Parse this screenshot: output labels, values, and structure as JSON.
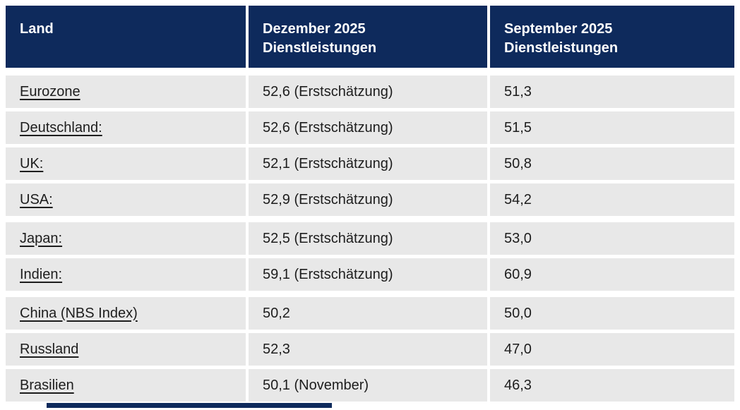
{
  "table": {
    "columns": [
      {
        "label": "Land"
      },
      {
        "label": "Dezember 2025 Dienstleistungen"
      },
      {
        "label": "September 2025 Dienstleistungen"
      }
    ],
    "rows": [
      {
        "land": "Eurozone",
        "dezember": "52,6 (Erstschätzung)",
        "september": "51,3"
      },
      {
        "land": "Deutschland:",
        "dezember": "52,6 (Erstschätzung)",
        "september": "51,5"
      },
      {
        "land": "UK:",
        "dezember": "52,1 (Erstschätzung)",
        "september": "50,8"
      },
      {
        "land": "USA:",
        "dezember": "52,9 (Erstschätzung)",
        "september": "54,2"
      },
      {
        "land": "Japan:",
        "dezember": "52,5 (Erstschätzung)",
        "september": "53,0"
      },
      {
        "land": "Indien:",
        "dezember": "59,1 (Erstschätzung)",
        "september": "60,9"
      },
      {
        "land": "China (NBS Index)",
        "dezember": "50,2",
        "september": "50,0"
      },
      {
        "land": "Russland",
        "dezember": "52,3",
        "september": "47,0"
      },
      {
        "land": "Brasilien",
        "dezember": "50,1 (November)",
        "september": "46,3"
      }
    ]
  },
  "chart_data": {
    "type": "table",
    "title": "",
    "columns": [
      "Land",
      "Dezember 2025 Dienstleistungen",
      "September 2025 Dienstleistungen"
    ],
    "rows": [
      [
        "Eurozone",
        "52,6 (Erstschätzung)",
        "51,3"
      ],
      [
        "Deutschland:",
        "52,6 (Erstschätzung)",
        "51,5"
      ],
      [
        "UK:",
        "52,1 (Erstschätzung)",
        "50,8"
      ],
      [
        "USA:",
        "52,9 (Erstschätzung)",
        "54,2"
      ],
      [
        "Japan:",
        "52,5 (Erstschätzung)",
        "53,0"
      ],
      [
        "Indien:",
        "59,1 (Erstschätzung)",
        "60,9"
      ],
      [
        "China (NBS Index)",
        "50,2",
        "50,0"
      ],
      [
        "Russland",
        "52,3",
        "47,0"
      ],
      [
        "Brasilien",
        "50,1 (November)",
        "46,3"
      ]
    ]
  },
  "colors": {
    "header_bg": "#0e2a5c",
    "header_text": "#ffffff",
    "row_bg": "#e8e8e8",
    "body_text": "#1d1d1d",
    "background": "#ffffff"
  }
}
